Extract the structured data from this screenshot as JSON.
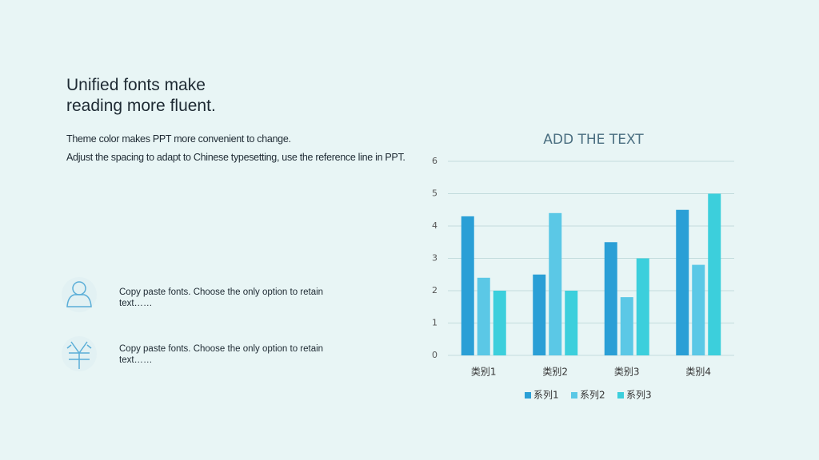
{
  "slide": {
    "heading": "Unified fonts make reading more fluent.",
    "paragraphs": [
      "Theme color makes PPT more convenient to change.",
      "Adjust the spacing to adapt to Chinese typesetting, use the reference line in PPT."
    ],
    "items": [
      "Copy paste fonts. Choose the only option to retain text……",
      "Copy paste fonts. Choose the only option to retain text……"
    ]
  },
  "chart_data": {
    "type": "bar",
    "title": "ADD THE TEXT",
    "categories": [
      "类别1",
      "类别2",
      "类别3",
      "类别4"
    ],
    "series": [
      {
        "name": "系列1",
        "color": "#2a9fd6",
        "values": [
          4.3,
          2.5,
          3.5,
          4.5
        ]
      },
      {
        "name": "系列2",
        "color": "#5bc8e6",
        "values": [
          2.4,
          4.4,
          1.8,
          2.8
        ]
      },
      {
        "name": "系列3",
        "color": "#3ccfdc",
        "values": [
          2,
          2,
          3,
          5
        ]
      }
    ],
    "ylim": [
      0,
      6
    ],
    "yticks": [
      0,
      1,
      2,
      3,
      4,
      5,
      6
    ],
    "grid": true,
    "legend": "bottom"
  }
}
